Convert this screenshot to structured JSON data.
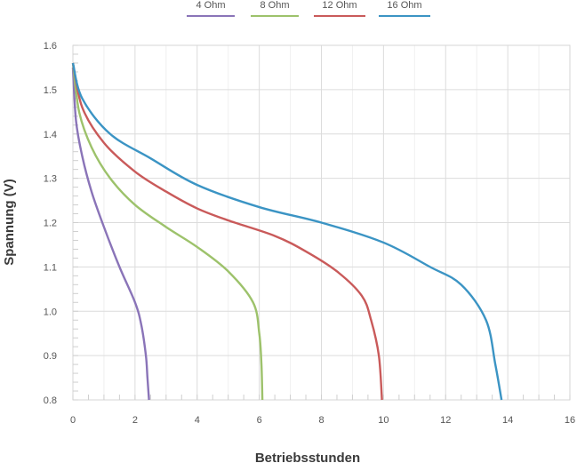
{
  "chart_data": {
    "type": "line",
    "title": "",
    "xlabel": "Betriebsstunden",
    "ylabel": "Spannung (V)",
    "xlim": [
      0,
      16
    ],
    "ylim": [
      0.8,
      1.6
    ],
    "x_ticks": [
      0,
      2,
      4,
      6,
      8,
      10,
      12,
      14,
      16
    ],
    "y_ticks": [
      0.8,
      0.9,
      1.0,
      1.1,
      1.2,
      1.3,
      1.4,
      1.5,
      1.6
    ],
    "x_tick_labels": [
      "0",
      "2",
      "4",
      "6",
      "8",
      "10",
      "12",
      "14",
      "16"
    ],
    "y_tick_labels": [
      "0.8",
      "0.9",
      "1.0",
      "1.1",
      "1.2",
      "1.3",
      "1.4",
      "1.5",
      "1.6"
    ],
    "grid": true,
    "legend": "top-center",
    "series": [
      {
        "name": "4 Ohm",
        "color": "#8a74b8",
        "points": [
          [
            0,
            1.55
          ],
          [
            0.1,
            1.43
          ],
          [
            0.3,
            1.35
          ],
          [
            0.6,
            1.27
          ],
          [
            1.0,
            1.19
          ],
          [
            1.5,
            1.1
          ],
          [
            2.0,
            1.02
          ],
          [
            2.2,
            0.97
          ],
          [
            2.35,
            0.9
          ],
          [
            2.4,
            0.85
          ],
          [
            2.45,
            0.8
          ]
        ]
      },
      {
        "name": "8 Ohm",
        "color": "#9dc26b",
        "points": [
          [
            0,
            1.56
          ],
          [
            0.2,
            1.45
          ],
          [
            0.6,
            1.37
          ],
          [
            1.2,
            1.3
          ],
          [
            2.0,
            1.24
          ],
          [
            3.0,
            1.19
          ],
          [
            4.0,
            1.145
          ],
          [
            5.0,
            1.09
          ],
          [
            5.8,
            1.02
          ],
          [
            6.0,
            0.95
          ],
          [
            6.07,
            0.88
          ],
          [
            6.1,
            0.8
          ]
        ]
      },
      {
        "name": "12 Ohm",
        "color": "#c95a5a",
        "points": [
          [
            0,
            1.56
          ],
          [
            0.3,
            1.46
          ],
          [
            1.0,
            1.38
          ],
          [
            2.0,
            1.315
          ],
          [
            3.0,
            1.27
          ],
          [
            4.0,
            1.232
          ],
          [
            5.0,
            1.205
          ],
          [
            6.5,
            1.17
          ],
          [
            7.5,
            1.135
          ],
          [
            8.5,
            1.09
          ],
          [
            9.3,
            1.035
          ],
          [
            9.6,
            0.98
          ],
          [
            9.85,
            0.9
          ],
          [
            9.95,
            0.8
          ]
        ]
      },
      {
        "name": "16 Ohm",
        "color": "#3b94c4",
        "points": [
          [
            0,
            1.56
          ],
          [
            0.3,
            1.48
          ],
          [
            1.2,
            1.4
          ],
          [
            2.5,
            1.345
          ],
          [
            4.0,
            1.285
          ],
          [
            6.0,
            1.235
          ],
          [
            8.0,
            1.2
          ],
          [
            10.0,
            1.155
          ],
          [
            11.5,
            1.1
          ],
          [
            12.5,
            1.06
          ],
          [
            13.3,
            0.98
          ],
          [
            13.6,
            0.88
          ],
          [
            13.8,
            0.8
          ]
        ]
      }
    ]
  }
}
